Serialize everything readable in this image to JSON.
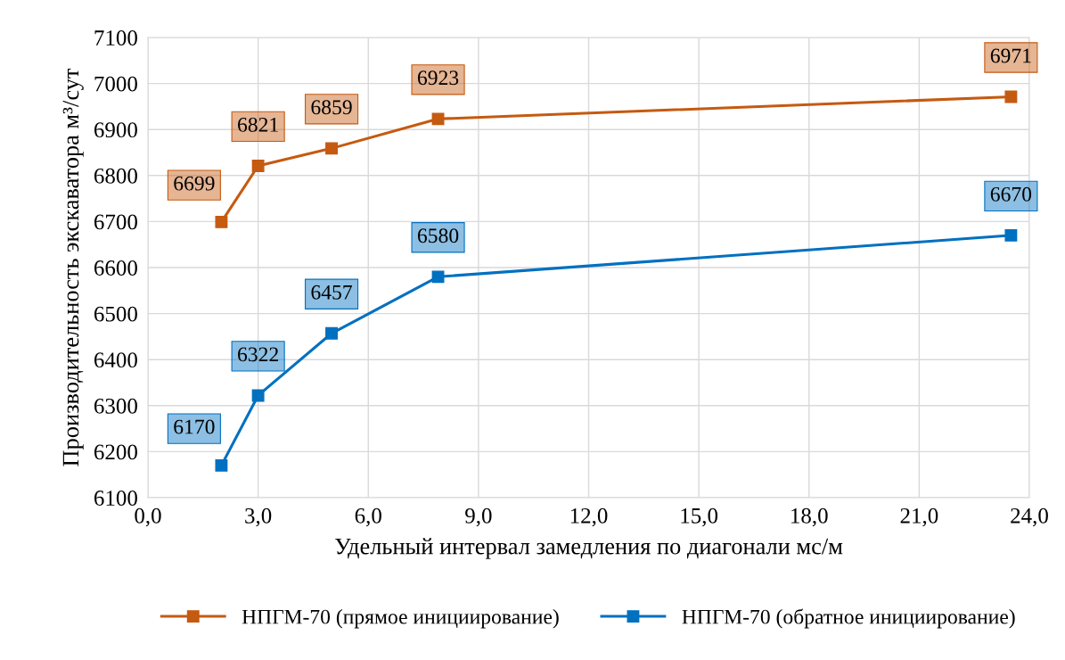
{
  "chart_data": {
    "type": "line",
    "xlabel": "Удельный интервал замедления по диагонали мс/м",
    "ylabel": "Производительность экскаватора м³/сут",
    "x": [
      2.0,
      3.0,
      5.0,
      7.9,
      23.5
    ],
    "series": [
      {
        "name": "НПГМ-70 (прямое инициирование)",
        "color": "#c55a11",
        "values": [
          6699,
          6821,
          6859,
          6923,
          6971
        ]
      },
      {
        "name": "НПГМ-70 (обратное инициирование)",
        "color": "#0070c0",
        "values": [
          6170,
          6322,
          6457,
          6580,
          6670
        ]
      }
    ],
    "xlim": [
      0,
      24
    ],
    "xticks": [
      {
        "value": 0,
        "label": "0,0"
      },
      {
        "value": 3,
        "label": "3,0"
      },
      {
        "value": 6,
        "label": "6,0"
      },
      {
        "value": 9,
        "label": "9,0"
      },
      {
        "value": 12,
        "label": "12,0"
      },
      {
        "value": 15,
        "label": "15,0"
      },
      {
        "value": 18,
        "label": "18,0"
      },
      {
        "value": 21,
        "label": "21,0"
      },
      {
        "value": 24,
        "label": "24,0"
      }
    ],
    "ylim": [
      6100,
      7100
    ],
    "yticks": [
      6100,
      6200,
      6300,
      6400,
      6500,
      6600,
      6700,
      6800,
      6900,
      7000,
      7100
    ],
    "grid": true,
    "legend": "bottom",
    "marker": "square",
    "line_style": "solid",
    "data_labels": true
  }
}
